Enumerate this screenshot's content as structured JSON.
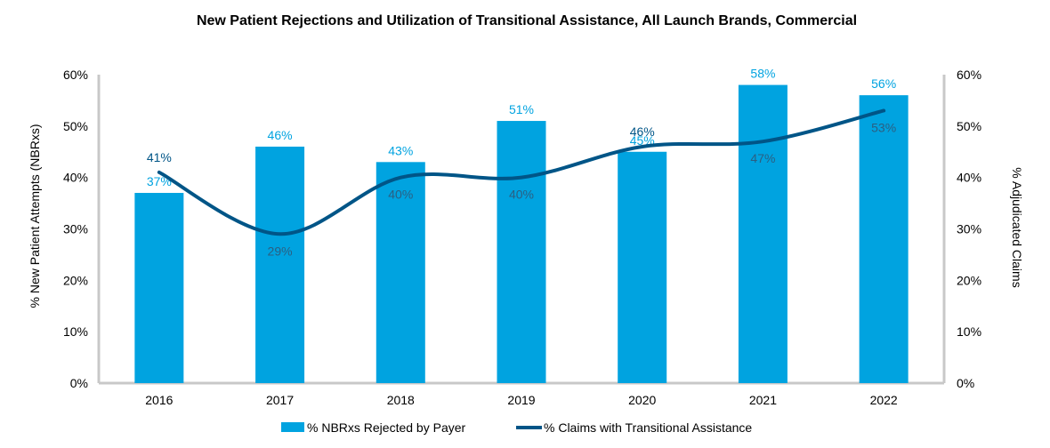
{
  "chart_data": {
    "type": "bar",
    "title": "New Patient Rejections and Utilization of Transitional Assistance, All Launch Brands, Commercial",
    "xlabel": "",
    "ylabel": "% New Patient Attempts (NBRxs)",
    "y2label": "% Adjudicated Claims",
    "categories": [
      "2016",
      "2017",
      "2018",
      "2019",
      "2020",
      "2021",
      "2022"
    ],
    "ylim": [
      0,
      60
    ],
    "y2lim": [
      0,
      60
    ],
    "yticks": [
      "0%",
      "10%",
      "20%",
      "30%",
      "40%",
      "50%",
      "60%"
    ],
    "y2ticks": [
      "0%",
      "10%",
      "20%",
      "30%",
      "40%",
      "50%",
      "60%"
    ],
    "grid": false,
    "legend_position": "bottom",
    "series": [
      {
        "name": "% NBRxs Rejected by Payer",
        "type": "bar",
        "axis": "left",
        "color": "#00A3E0",
        "values": [
          37,
          46,
          43,
          51,
          45,
          58,
          56
        ],
        "labels": [
          "37%",
          "46%",
          "43%",
          "51%",
          "45%",
          "58%",
          "56%"
        ]
      },
      {
        "name": "% Claims with Transitional Assistance",
        "type": "line",
        "axis": "right",
        "color": "#005587",
        "values": [
          41,
          29,
          40,
          40,
          46,
          47,
          53
        ],
        "labels": [
          "41%",
          "29%",
          "40%",
          "40%",
          "46%",
          "47%",
          "53%"
        ]
      }
    ]
  }
}
